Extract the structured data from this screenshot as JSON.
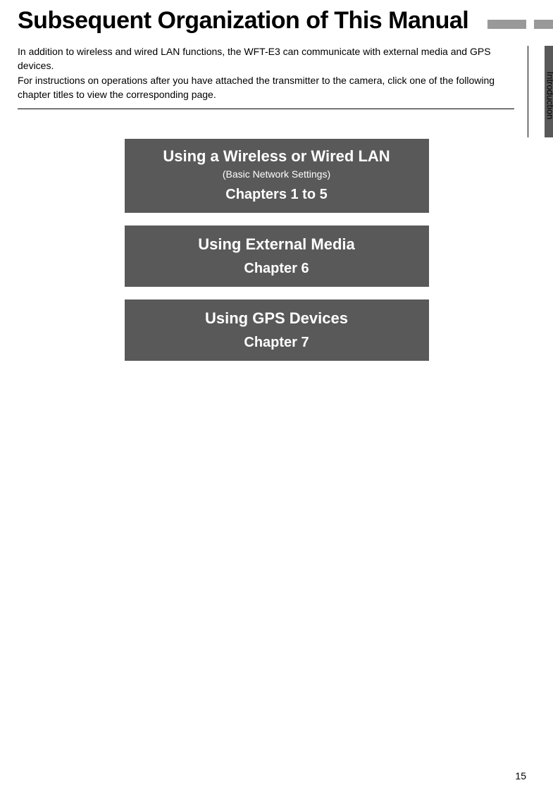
{
  "title": "Subsequent Organization of This Manual",
  "side_tab": "Introduction",
  "intro": {
    "line1": "In addition to wireless and wired LAN functions, the WFT-E3 can communicate with external media and GPS devices.",
    "line2": "For instructions on operations after you have attached the transmitter to the camera, click one of the following chapter titles to view the corresponding page."
  },
  "boxes": [
    {
      "title": "Using a Wireless or Wired LAN",
      "sub": "(Basic Network Settings)",
      "link": "Chapters 1 to 5"
    },
    {
      "title": "Using External Media",
      "link": "Chapter 6"
    },
    {
      "title": "Using GPS Devices",
      "link": "Chapter 7"
    }
  ],
  "page_number": "15",
  "colors": {
    "box_bg": "#595959",
    "box_text": "#ffffff",
    "bar_gray": "#999999",
    "body_bg": "#ffffff",
    "text": "#000000"
  }
}
